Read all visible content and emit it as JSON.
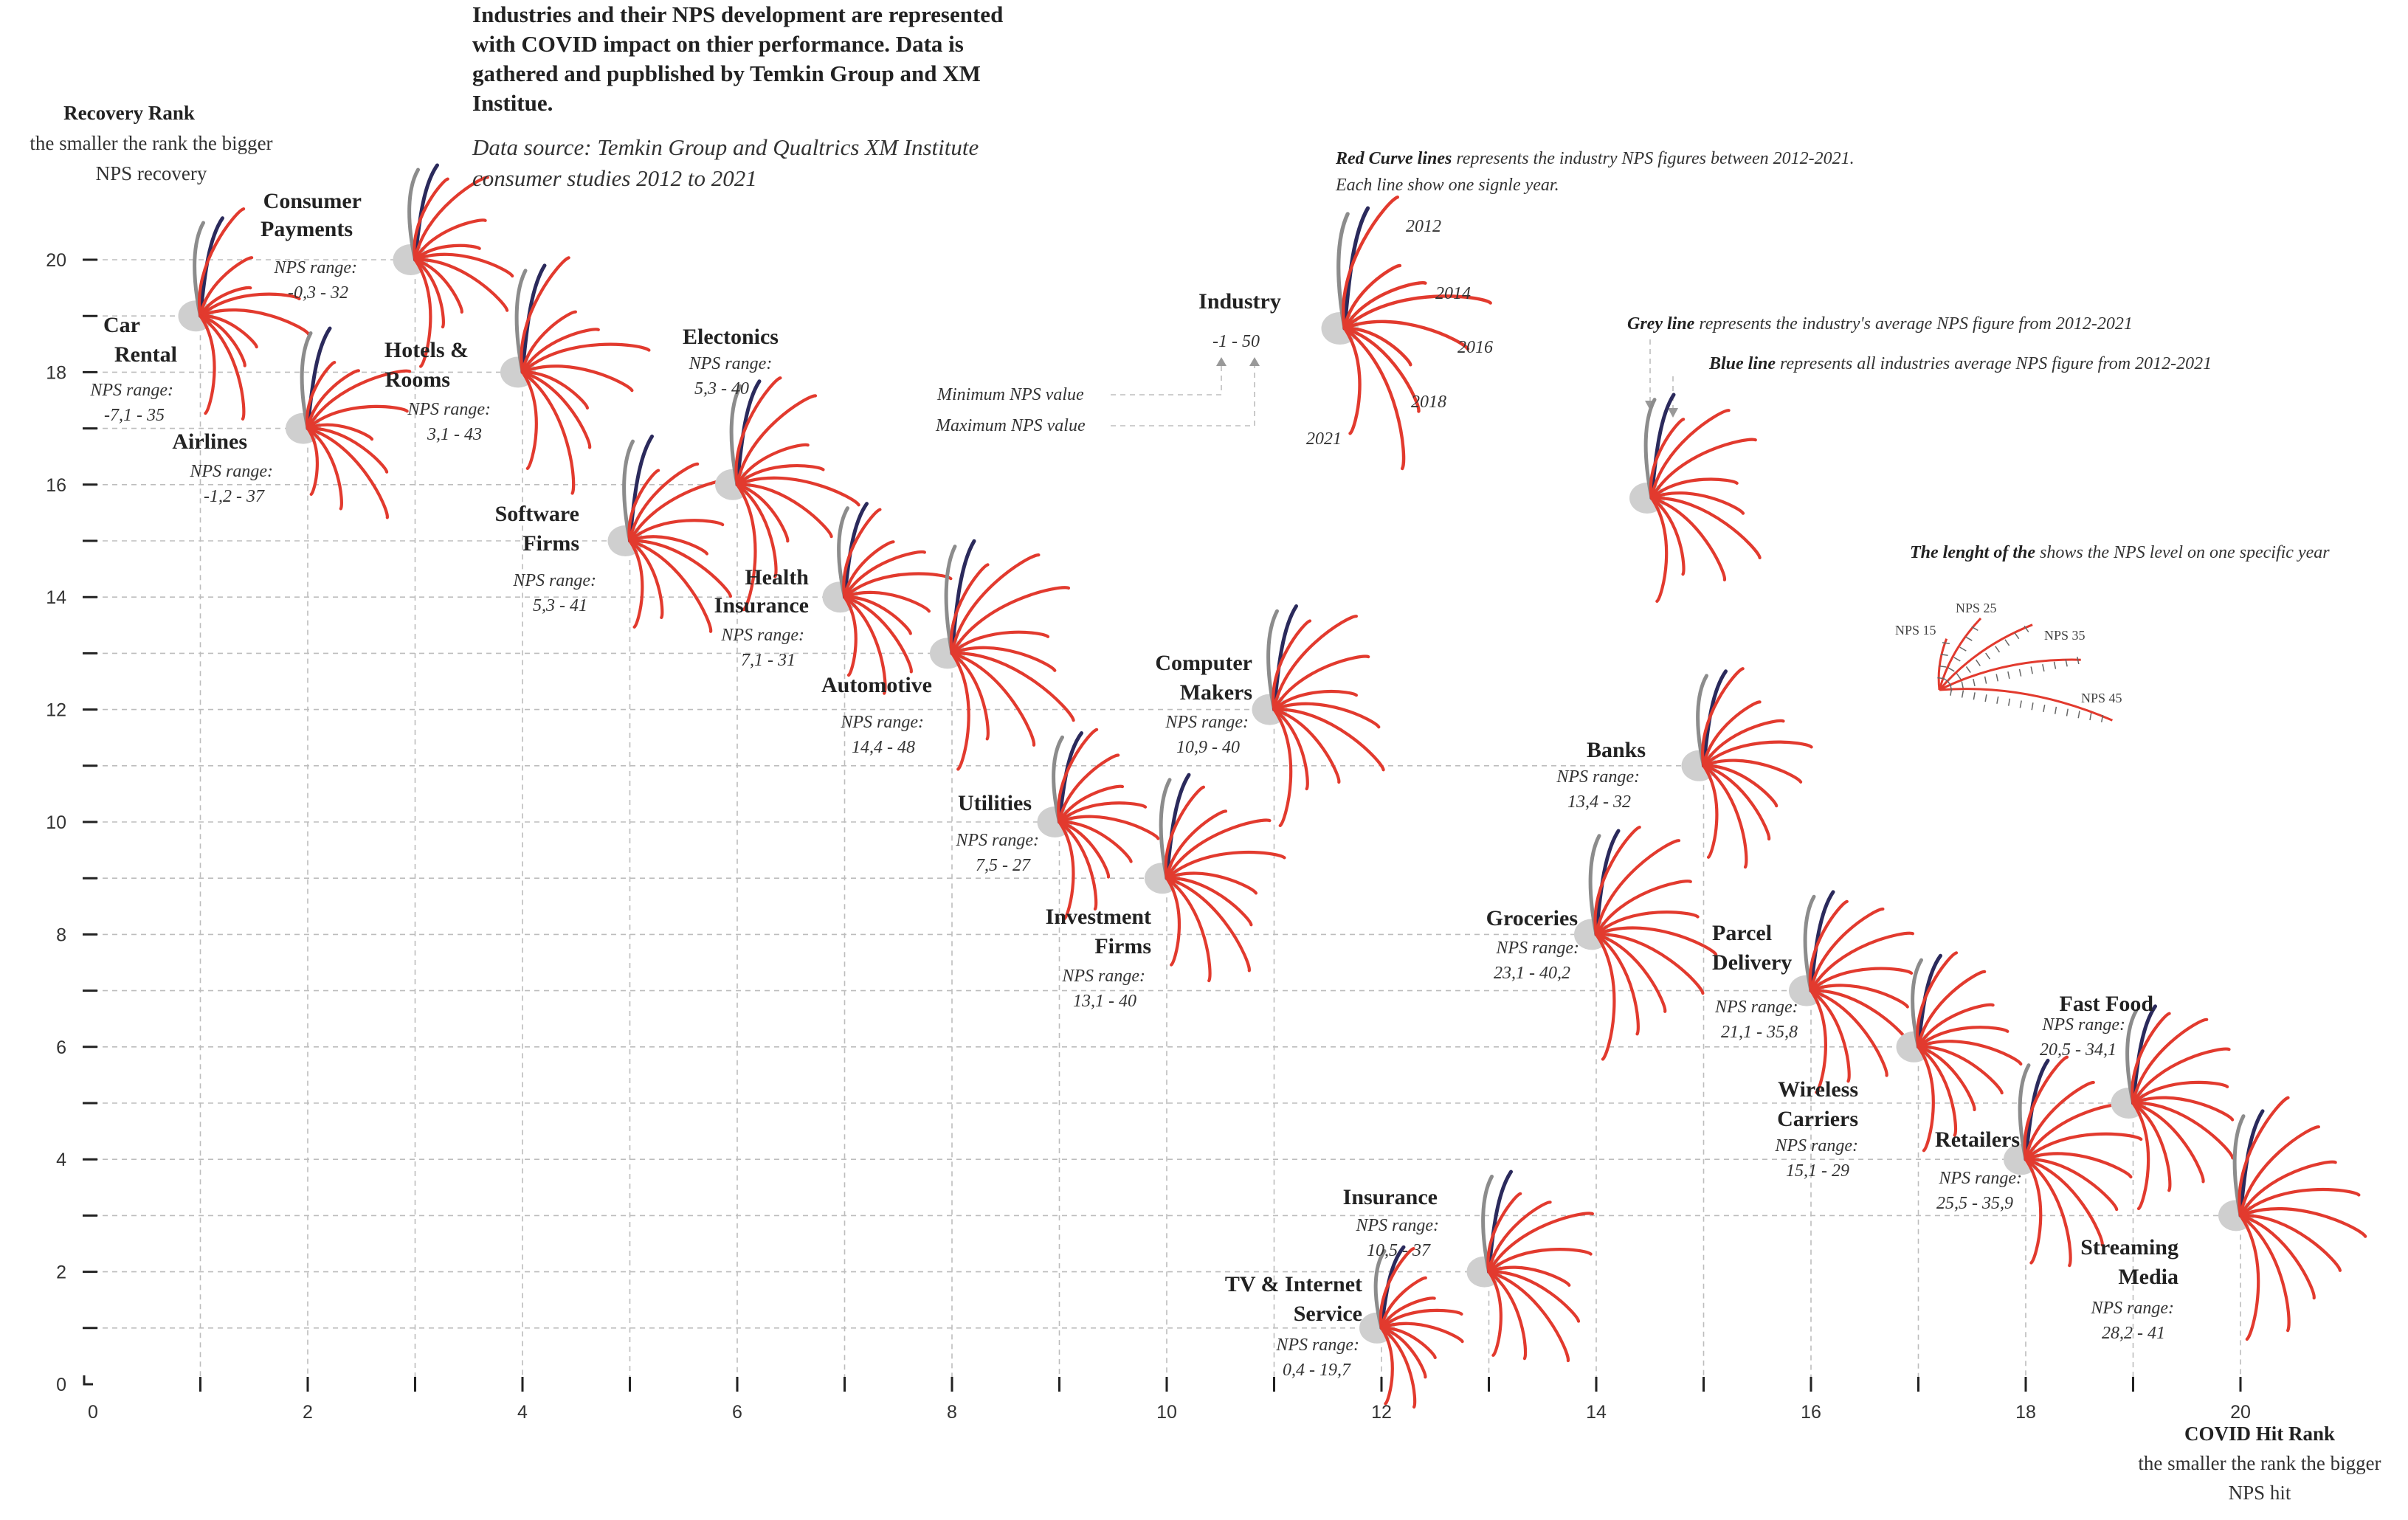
{
  "title": "Industries and their NPS development are represented with COVID impact on thier performance. Data is gathered and pupblished by Temkin Group and XM Institue.",
  "title_lines": [
    "Industries and their NPS development are represented",
    "with COVID impact on thier performance. Data is",
    "gathered and pupblished by Temkin Group and XM",
    "Institue."
  ],
  "source_lines": [
    "Data source: Temkin Group and Qualtrics XM Institute",
    "consumer studies 2012 to 2021"
  ],
  "y_axis": {
    "title": "Recovery Rank",
    "sub_lines": [
      "the smaller the rank the bigger",
      "NPS recovery"
    ]
  },
  "x_axis": {
    "title": "COVID Hit Rank",
    "sub_lines": [
      "the smaller the rank the bigger",
      "NPS hit"
    ]
  },
  "legend": {
    "red_bold": "Red Curve lines",
    "red_rest": " represents the industry NPS figures between 2012-2021.",
    "red_line2": "Each line show one signle year.",
    "example_name": "Industry",
    "example_range": "-1 - 50",
    "min_label": "Minimum NPS value",
    "max_label": "Maximum NPS value",
    "year_labels": [
      "2012",
      "2014",
      "2016",
      "2018",
      "2021"
    ],
    "grey_bold": "Grey line",
    "grey_rest": " represents the industry's average NPS figure from 2012-2021",
    "blue_bold": "Blue line",
    "blue_rest": " represents all industries average NPS figure from 2012-2021",
    "length_bold": "The lenght of the",
    "length_rest": " shows the NPS level on one specific year",
    "nps_ticks": [
      "NPS 15",
      "NPS 25",
      "NPS 35",
      "NPS 45"
    ]
  },
  "colors": {
    "red": "#e23a2e",
    "navy": "#2b2a5c",
    "grey_line": "#8c8c8c",
    "node": "#cfcfcf",
    "grid": "#bdbdbd"
  },
  "chart_data": {
    "type": "scatter",
    "xlabel": "COVID Hit Rank",
    "ylabel": "Recovery Rank",
    "xlim": [
      0,
      21
    ],
    "ylim": [
      0,
      20
    ],
    "x_ticks": [
      0,
      2,
      4,
      6,
      8,
      10,
      12,
      14,
      16,
      18,
      20
    ],
    "y_ticks": [
      0,
      2,
      4,
      6,
      8,
      10,
      12,
      14,
      16,
      18,
      20
    ],
    "grid": true,
    "points": [
      {
        "name": "Car Rental",
        "x": 1,
        "y": 19,
        "range_label": "NPS range:",
        "range": "-7,1 - 35",
        "nps_min": -7.1,
        "nps_max": 35
      },
      {
        "name": "Airlines",
        "x": 2,
        "y": 17,
        "range_label": "NPS range:",
        "range": "-1,2 - 37",
        "nps_min": -1.2,
        "nps_max": 37
      },
      {
        "name": "Consumer Payments",
        "x": 3,
        "y": 20,
        "range_label": "NPS range:",
        "range": "-0,3 - 32",
        "nps_min": -0.3,
        "nps_max": 32
      },
      {
        "name": "Hotels & Rooms",
        "x": 4,
        "y": 18,
        "range_label": "NPS range:",
        "range": "3,1 - 43",
        "nps_min": 3.1,
        "nps_max": 43
      },
      {
        "name": "Software Firms",
        "x": 5,
        "y": 15,
        "range_label": "NPS range:",
        "range": "5,3 - 41",
        "nps_min": 5.3,
        "nps_max": 41
      },
      {
        "name": "Electonics",
        "x": 6,
        "y": 16,
        "range_label": "NPS range:",
        "range": "5,3 - 40",
        "nps_min": 5.3,
        "nps_max": 40
      },
      {
        "name": "Health Insurance",
        "x": 7,
        "y": 14,
        "range_label": "NPS range:",
        "range": "7,1 - 31",
        "nps_min": 7.1,
        "nps_max": 31
      },
      {
        "name": "Automotive",
        "x": 8,
        "y": 13,
        "range_label": "NPS range:",
        "range": "14,4 - 48",
        "nps_min": 14.4,
        "nps_max": 48
      },
      {
        "name": "Utilities",
        "x": 9,
        "y": 10,
        "range_label": "NPS range:",
        "range": "7,5 - 27",
        "nps_min": 7.5,
        "nps_max": 27
      },
      {
        "name": "Investment Firms",
        "x": 10,
        "y": 9,
        "range_label": "NPS range:",
        "range": "13,1 - 40",
        "nps_min": 13.1,
        "nps_max": 40
      },
      {
        "name": "Computer Makers",
        "x": 11,
        "y": 12,
        "range_label": "NPS range:",
        "range": "10,9 - 40",
        "nps_min": 10.9,
        "nps_max": 40
      },
      {
        "name": "TV & Internet Service",
        "x": 12,
        "y": 1,
        "range_label": "NPS range:",
        "range": "0,4 - 19,7",
        "nps_min": 0.4,
        "nps_max": 19.7
      },
      {
        "name": "Insurance",
        "x": 13,
        "y": 2,
        "range_label": "NPS range:",
        "range": "10,5 - 37",
        "nps_min": 10.5,
        "nps_max": 37
      },
      {
        "name": "Groceries",
        "x": 14,
        "y": 8,
        "range_label": "NPS range:",
        "range": "23,1 - 40,2",
        "nps_min": 23.1,
        "nps_max": 40.2
      },
      {
        "name": "Banks",
        "x": 15,
        "y": 11,
        "range_label": "NPS range:",
        "range": "13,4 - 32",
        "nps_min": 13.4,
        "nps_max": 32
      },
      {
        "name": "Parcel Delivery",
        "x": 16,
        "y": 7,
        "range_label": "NPS range:",
        "range": "21,1 - 35,8",
        "nps_min": 21.1,
        "nps_max": 35.8
      },
      {
        "name": "Wireless Carriers",
        "x": 17,
        "y": 6,
        "range_label": "NPS range:",
        "range": "15,1 - 29",
        "nps_min": 15.1,
        "nps_max": 29
      },
      {
        "name": "Retailers",
        "x": 18,
        "y": 4,
        "range_label": "NPS range:",
        "range": "25,5 - 35,9",
        "nps_min": 25.5,
        "nps_max": 35.9
      },
      {
        "name": "Fast Food",
        "x": 19,
        "y": 5,
        "range_label": "NPS range:",
        "range": "20,5 - 34,1",
        "nps_min": 20.5,
        "nps_max": 34.1
      },
      {
        "name": "Streaming Media",
        "x": 20,
        "y": 3,
        "range_label": "NPS range:",
        "range": "28,2 - 41",
        "nps_min": 28.2,
        "nps_max": 41
      }
    ]
  }
}
